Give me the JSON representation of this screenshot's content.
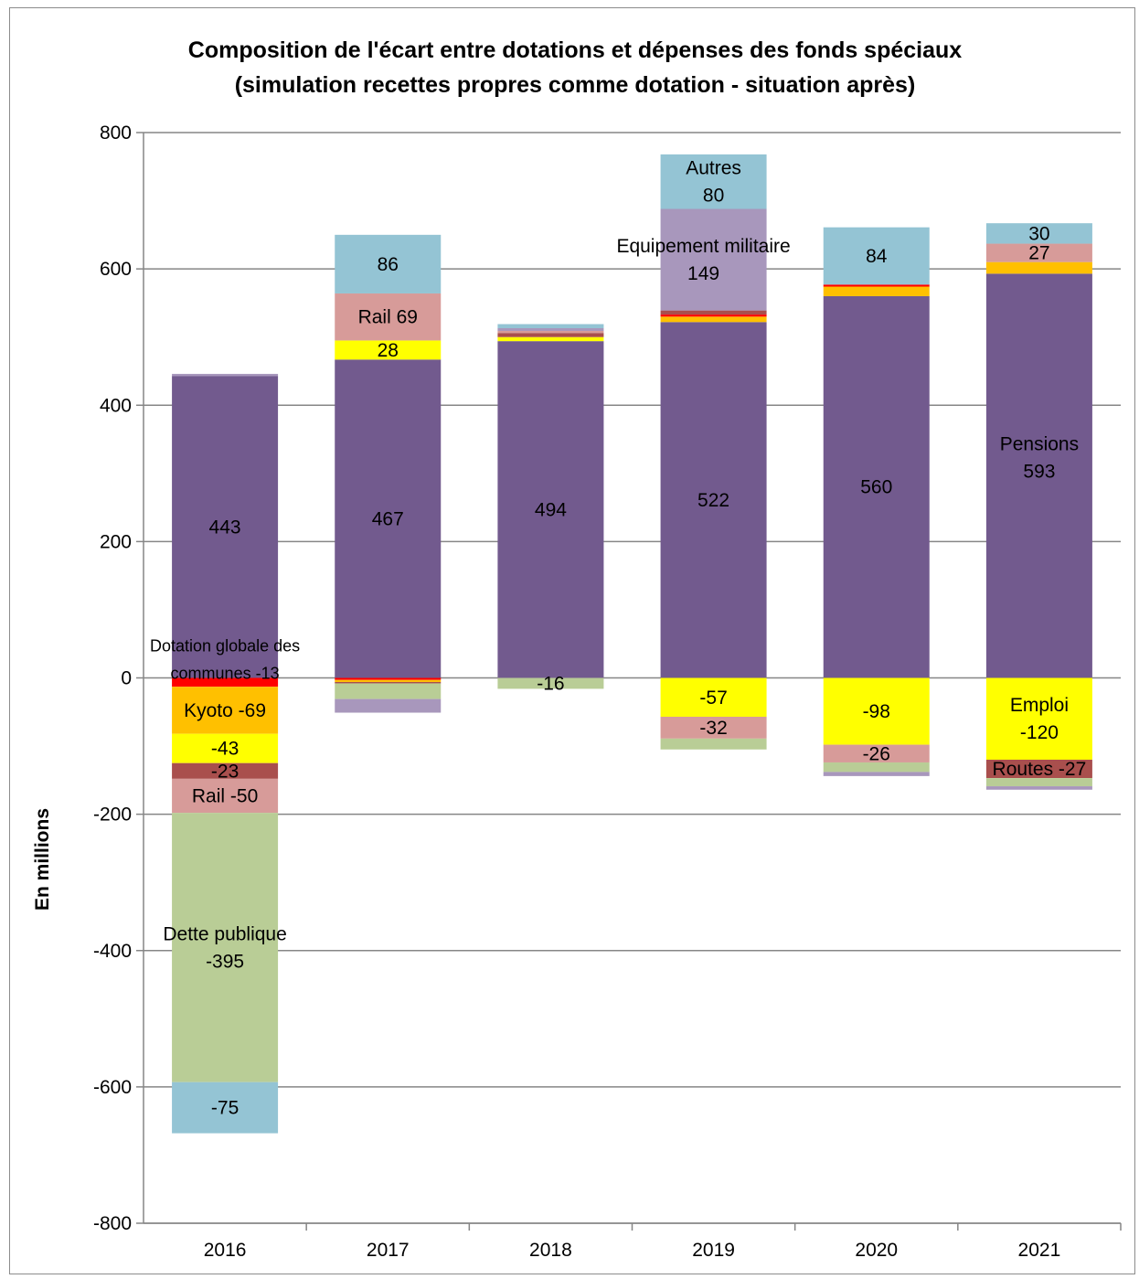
{
  "chart_data": {
    "type": "bar",
    "stacked": true,
    "title": "Composition de l'écart entre dotations et dépenses des fonds spéciaux",
    "subtitle": "(simulation recettes propres comme dotation - situation après)",
    "xlabel": "",
    "ylabel": "En millions",
    "ylim": [
      -800,
      800
    ],
    "yticks": [
      800,
      600,
      400,
      200,
      0,
      -200,
      -400,
      -600,
      -800
    ],
    "grid": true,
    "categories": [
      "2016",
      "2017",
      "2018",
      "2019",
      "2020",
      "2021"
    ],
    "positive_stack_order": [
      "Pensions",
      "Emploi",
      "Kyoto",
      "Dotation globale des communes",
      "Routes",
      "Rail",
      "Dette publique",
      "Equipement militaire",
      "Autres"
    ],
    "negative_stack_order": [
      "Pensions",
      "Dotation globale des communes",
      "Kyoto",
      "Emploi",
      "Routes",
      "Rail",
      "Dette publique",
      "Equipement militaire",
      "Autres"
    ],
    "series": [
      {
        "name": "Pensions",
        "color": "#725a8e",
        "values": [
          443,
          467,
          494,
          522,
          560,
          593
        ]
      },
      {
        "name": "Emploi",
        "color": "#ffff00",
        "values": [
          -43,
          28,
          6,
          -57,
          -98,
          -120
        ]
      },
      {
        "name": "Kyoto",
        "color": "#ffc000",
        "values": [
          -69,
          -3,
          0,
          8,
          14,
          17
        ]
      },
      {
        "name": "Dotation globale des communes",
        "color": "#ff0000",
        "values": [
          -13,
          -3,
          0,
          3,
          3,
          0
        ]
      },
      {
        "name": "Routes",
        "color": "#a94f4d",
        "values": [
          -23,
          -2,
          6,
          6,
          0,
          -27
        ]
      },
      {
        "name": "Rail",
        "color": "#d79b99",
        "values": [
          -50,
          69,
          3,
          -32,
          -26,
          27
        ]
      },
      {
        "name": "Dette publique",
        "color": "#b9cd96",
        "values": [
          -395,
          -23,
          -16,
          -16,
          -14,
          -12
        ]
      },
      {
        "name": "Equipement militaire",
        "color": "#a897bc",
        "values": [
          3,
          -20,
          4,
          149,
          -6,
          -5
        ]
      },
      {
        "name": "Autres",
        "color": "#94c4d4",
        "values": [
          -75,
          86,
          6,
          80,
          84,
          30
        ]
      }
    ],
    "annotations": [
      {
        "category": "2016",
        "series": "Pensions",
        "text": "443"
      },
      {
        "category": "2016",
        "series": "Dotation globale des communes",
        "text": "Dotation globale des communes -13"
      },
      {
        "category": "2016",
        "series": "Kyoto",
        "text": "Kyoto -69"
      },
      {
        "category": "2016",
        "series": "Emploi",
        "text": "-43"
      },
      {
        "category": "2016",
        "series": "Routes",
        "text": "-23"
      },
      {
        "category": "2016",
        "series": "Rail",
        "text": "Rail -50"
      },
      {
        "category": "2016",
        "series": "Dette publique",
        "text": "Dette publique -395"
      },
      {
        "category": "2016",
        "series": "Autres",
        "text": "-75"
      },
      {
        "category": "2017",
        "series": "Pensions",
        "text": "467"
      },
      {
        "category": "2017",
        "series": "Emploi",
        "text": "28"
      },
      {
        "category": "2017",
        "series": "Rail",
        "text": "Rail 69"
      },
      {
        "category": "2017",
        "series": "Autres",
        "text": "86"
      },
      {
        "category": "2018",
        "series": "Pensions",
        "text": "494"
      },
      {
        "category": "2018",
        "series": "Dette publique",
        "text": "-16"
      },
      {
        "category": "2019",
        "series": "Pensions",
        "text": "522"
      },
      {
        "category": "2019",
        "series": "Equipement militaire",
        "text": "Equipement militaire 149"
      },
      {
        "category": "2019",
        "series": "Autres",
        "text": "Autres 80"
      },
      {
        "category": "2019",
        "series": "Emploi",
        "text": "-57"
      },
      {
        "category": "2019",
        "series": "Rail",
        "text": "-32"
      },
      {
        "category": "2020",
        "series": "Pensions",
        "text": "560"
      },
      {
        "category": "2020",
        "series": "Autres",
        "text": "84"
      },
      {
        "category": "2020",
        "series": "Emploi",
        "text": "-98"
      },
      {
        "category": "2020",
        "series": "Rail",
        "text": "-26"
      },
      {
        "category": "2021",
        "series": "Pensions",
        "text": "Pensions 593"
      },
      {
        "category": "2021",
        "series": "Rail",
        "text": "27"
      },
      {
        "category": "2021",
        "series": "Autres",
        "text": "30"
      },
      {
        "category": "2021",
        "series": "Emploi",
        "text": "Emploi -120"
      },
      {
        "category": "2021",
        "series": "Routes",
        "text": "Routes -27"
      }
    ],
    "colors": {
      "gridline": "#868686",
      "axis": "#868686",
      "text": "#000000"
    }
  }
}
